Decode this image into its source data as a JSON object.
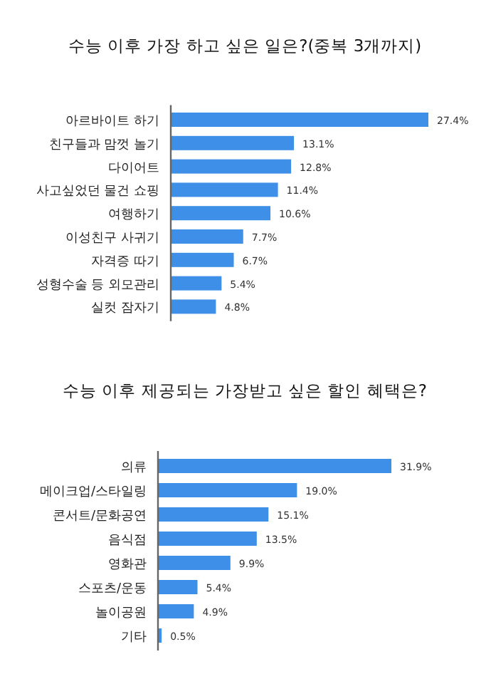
{
  "chart_data": [
    {
      "type": "bar",
      "orientation": "horizontal",
      "title": "수능 이후 가장 하고 싶은 일은?(중복 3개까지)",
      "categories": [
        "아르바이트 하기",
        "친구들과 맘껏 놀기",
        "다이어트",
        "사고싶었던 물건 쇼핑",
        "여행하기",
        "이성친구 사귀기",
        "자격증 따기",
        "성형수술 등 외모관리",
        "실컷 잠자기"
      ],
      "values": [
        27.4,
        13.1,
        12.8,
        11.4,
        10.6,
        7.7,
        6.7,
        5.4,
        4.8
      ],
      "value_labels": [
        "27.4%",
        "13.1%",
        "12.8%",
        "11.4%",
        "10.6%",
        "7.7%",
        "6.7%",
        "5.4%",
        "4.8%"
      ],
      "color": "#3d8fe8"
    },
    {
      "type": "bar",
      "orientation": "horizontal",
      "title": "수능 이후 제공되는 가장받고 싶은 할인 혜택은?",
      "categories": [
        "의류",
        "메이크업/스타일링",
        "콘서트/문화공연",
        "음식점",
        "영화관",
        "스포츠/운동",
        "놀이공원",
        "기타"
      ],
      "values": [
        31.9,
        19.0,
        15.1,
        13.5,
        9.9,
        5.4,
        4.9,
        0.5
      ],
      "value_labels": [
        "31.9%",
        "19.0%",
        "15.1%",
        "13.5%",
        "9.9%",
        "5.4%",
        "4.9%",
        "0.5%"
      ],
      "color": "#3d8fe8"
    }
  ]
}
